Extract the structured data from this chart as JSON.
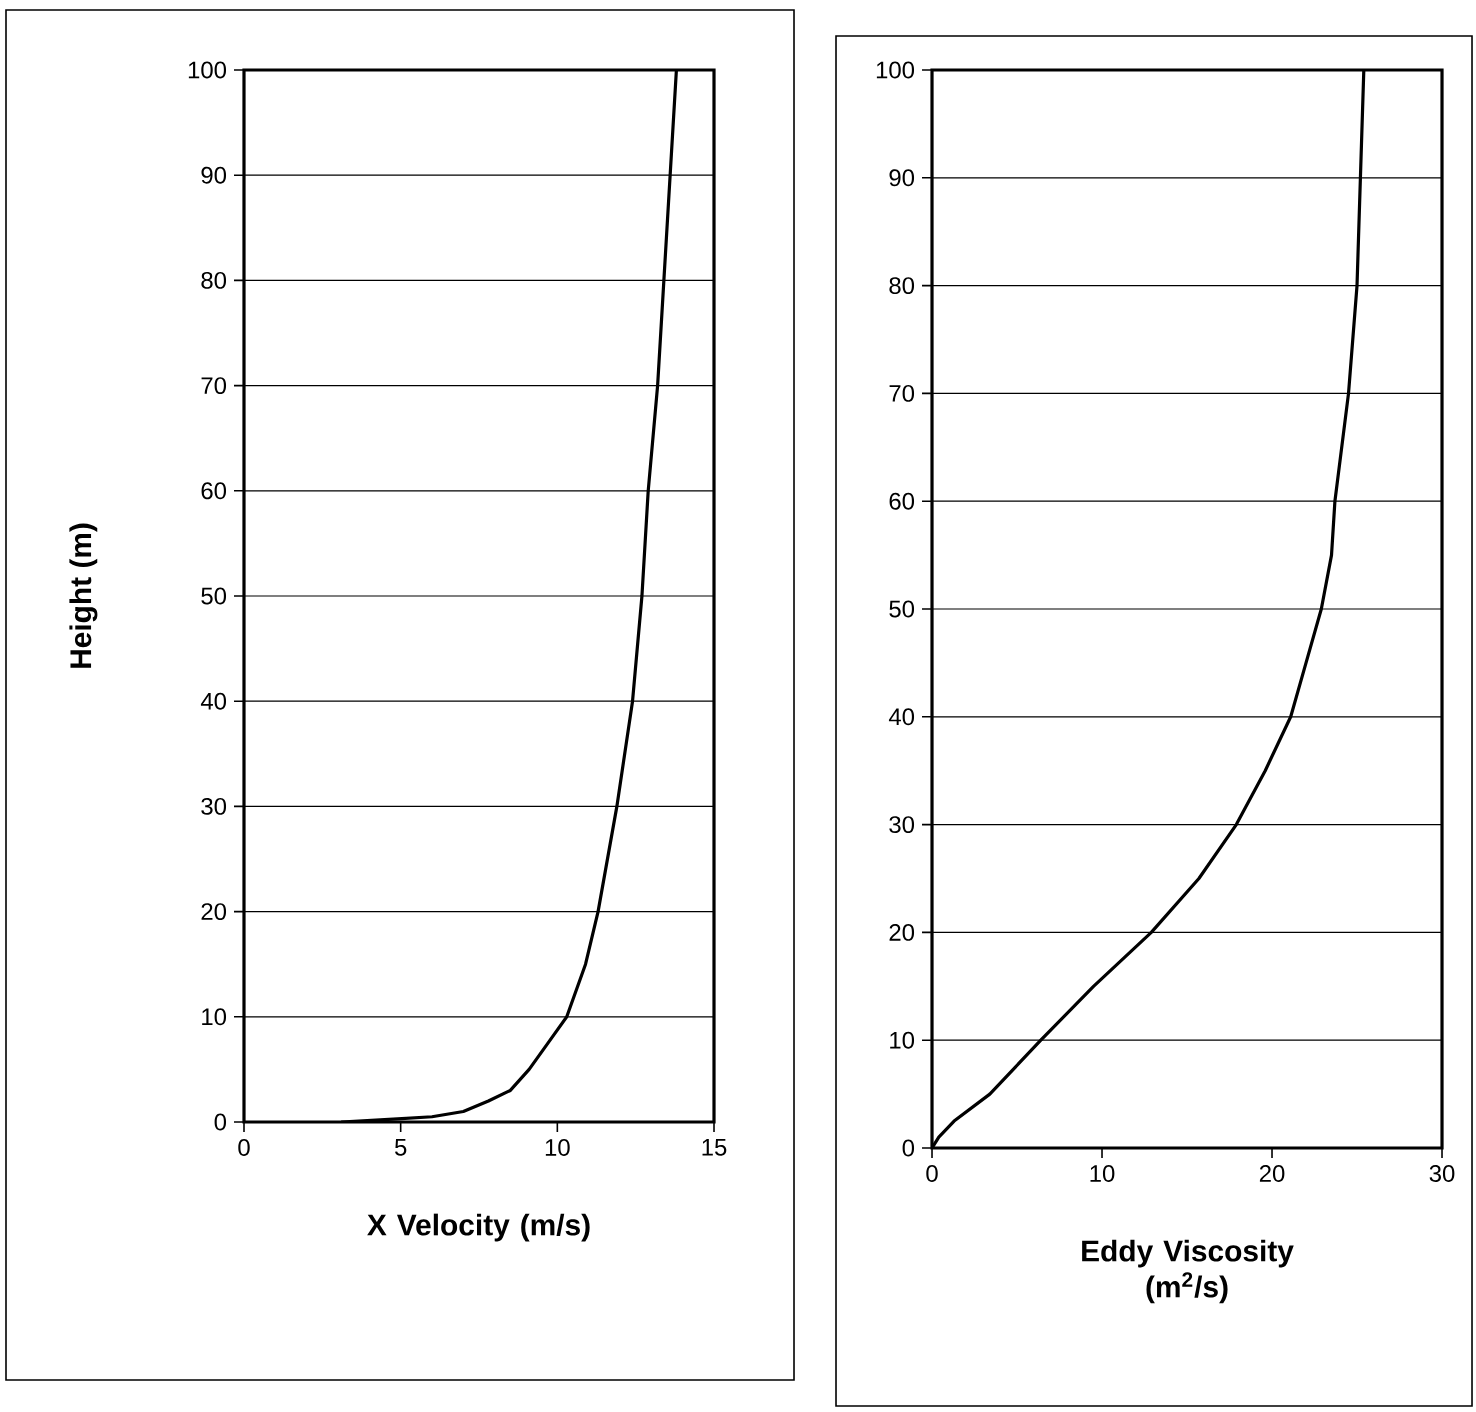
{
  "chart_data": [
    {
      "type": "line",
      "xlabel": "X Velocity (m/s)",
      "ylabel": "Height (m)",
      "color": "#000000",
      "grid": "y",
      "marker": "none",
      "x": [
        3.1,
        4.9,
        6.0,
        7.0,
        7.8,
        8.5,
        9.1,
        9.7,
        10.3,
        10.9,
        11.3,
        11.9,
        12.4,
        12.7,
        12.9,
        13.2,
        13.4,
        13.6,
        13.8
      ],
      "values": [
        0,
        0.3,
        0.5,
        1,
        2,
        3,
        5,
        7.5,
        10,
        15,
        20,
        30,
        40,
        50,
        60,
        70,
        80,
        90,
        100
      ],
      "xlim": [
        0,
        15
      ],
      "xticks": [
        0,
        5,
        10,
        15
      ],
      "ylim": [
        0,
        100
      ],
      "yticks": [
        0,
        10,
        20,
        30,
        40,
        50,
        60,
        70,
        80,
        90,
        100
      ]
    },
    {
      "type": "line",
      "xlabel": "Eddy Viscosity (m$^{2}$/s)",
      "color": "#000000",
      "grid": "y",
      "marker": "none",
      "x": [
        0,
        0.4,
        1.3,
        3.4,
        6.4,
        9.5,
        12.9,
        15.7,
        17.9,
        19.6,
        21.1,
        22.0,
        22.9,
        23.5,
        23.7,
        24.5,
        25.0,
        25.2,
        25.4
      ],
      "values": [
        0,
        1,
        2.5,
        5,
        10,
        15,
        20,
        25,
        30,
        35,
        40,
        45,
        50,
        55,
        60,
        70,
        80,
        90,
        100
      ],
      "xlim": [
        0,
        30
      ],
      "xticks": [
        0,
        10,
        20,
        30
      ],
      "ylim": [
        0,
        100
      ],
      "yticks": [
        0,
        10,
        20,
        30,
        40,
        50,
        60,
        70,
        80,
        90,
        100
      ]
    }
  ]
}
